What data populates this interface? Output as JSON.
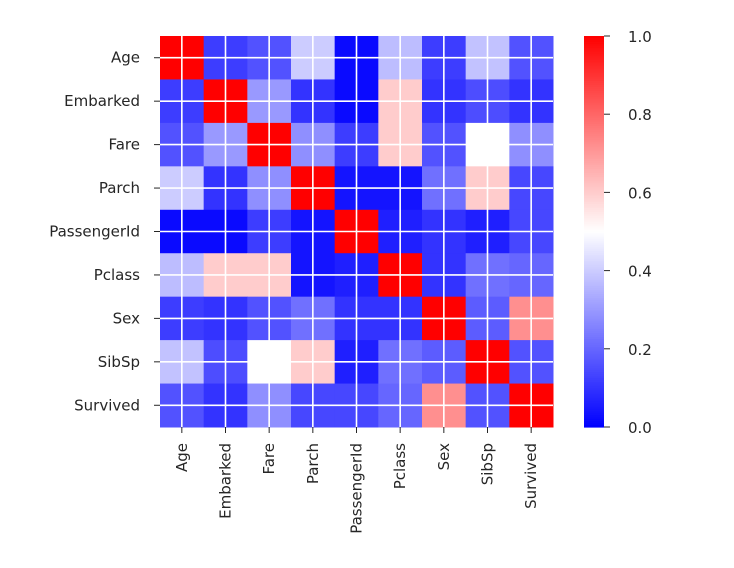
{
  "chart_data": {
    "type": "heatmap",
    "title": "",
    "xlabel": "",
    "ylabel": "",
    "rows": [
      "Age",
      "Embarked",
      "Fare",
      "Parch",
      "PassengerId",
      "Pclass",
      "Sex",
      "SibSp",
      "Survived"
    ],
    "cols": [
      "Age",
      "Embarked",
      "Fare",
      "Parch",
      "PassengerId",
      "Pclass",
      "Sex",
      "SibSp",
      "Survived"
    ],
    "values": [
      [
        1.0,
        0.12,
        0.16,
        0.4,
        0.02,
        0.37,
        0.12,
        0.38,
        0.16
      ],
      [
        0.12,
        1.0,
        0.3,
        0.1,
        0.02,
        0.6,
        0.1,
        0.15,
        0.1
      ],
      [
        0.16,
        0.3,
        1.0,
        0.28,
        0.12,
        0.6,
        0.16,
        0.5,
        0.28
      ],
      [
        0.4,
        0.1,
        0.28,
        1.0,
        0.04,
        0.04,
        0.22,
        0.6,
        0.14
      ],
      [
        0.02,
        0.02,
        0.12,
        0.04,
        1.0,
        0.06,
        0.1,
        0.06,
        0.14
      ],
      [
        0.37,
        0.6,
        0.6,
        0.04,
        0.06,
        1.0,
        0.1,
        0.22,
        0.2
      ],
      [
        0.12,
        0.1,
        0.16,
        0.22,
        0.1,
        0.1,
        1.0,
        0.18,
        0.72
      ],
      [
        0.38,
        0.15,
        0.5,
        0.6,
        0.06,
        0.22,
        0.18,
        1.0,
        0.16
      ],
      [
        0.16,
        0.1,
        0.28,
        0.14,
        0.14,
        0.2,
        0.72,
        0.16,
        1.0
      ]
    ],
    "colorscale": {
      "name": "bwr",
      "vmin": 0.0,
      "vmax": 1.0,
      "low": "#0000ff",
      "mid": "#ffffff",
      "high": "#ff0000"
    },
    "colorbar_ticks": [
      "0.0",
      "0.2",
      "0.4",
      "0.6",
      "0.8",
      "1.0"
    ],
    "grid": true,
    "grid_color": "#ffffff"
  }
}
